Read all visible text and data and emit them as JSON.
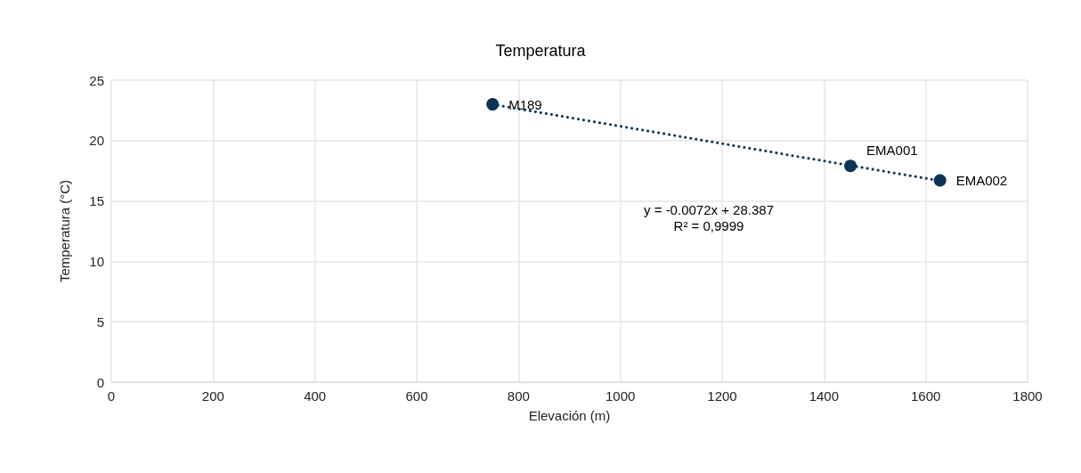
{
  "chart_data": {
    "type": "scatter",
    "title": "Temperatura",
    "xlabel": "Elevación (m)",
    "ylabel": "Temperatura (°C)",
    "x": [
      749,
      1452,
      1628
    ],
    "series": [
      {
        "color": "#0e3454",
        "values": [
          23.0,
          17.9,
          16.7
        ],
        "marker": "circle"
      },
      {
        "type": "line",
        "color": "#0e3454",
        "x": [
          749,
          1628
        ],
        "values": [
          22.99,
          16.67
        ],
        "marker": "none",
        "line_style": "dotted"
      }
    ],
    "annotations": [
      {
        "text": "M189",
        "x": 749,
        "y": 23.0
      },
      {
        "text": "EMA001",
        "x": 1452,
        "y": 17.9
      },
      {
        "text": "EMA002",
        "x": 1628,
        "y": 16.7
      },
      "y = -0.0072x + 28.387\nR² = 0,9999"
    ],
    "xlim": [
      0,
      1800
    ],
    "xticks": [
      0,
      200,
      400,
      600,
      800,
      1000,
      1200,
      1400,
      1600,
      1800
    ],
    "ylim": [
      0,
      25
    ],
    "yticks": [
      0,
      5,
      10,
      15,
      20,
      25
    ],
    "grid": true
  }
}
